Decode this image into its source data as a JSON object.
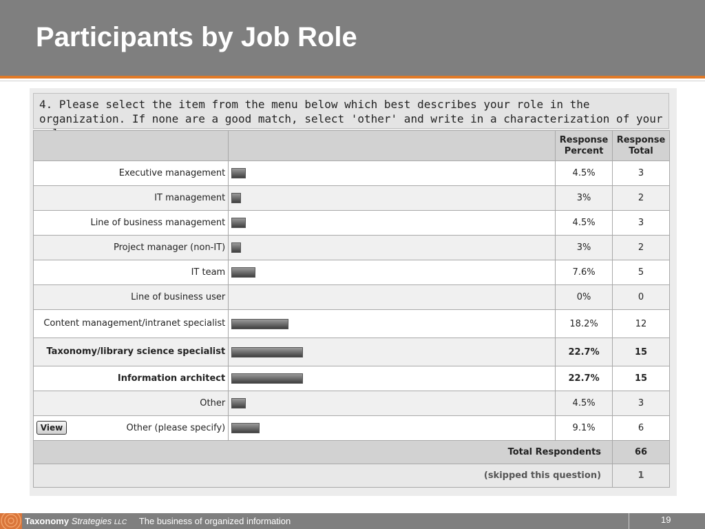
{
  "slide": {
    "title": "Participants by Job Role",
    "page_number": "19"
  },
  "footer": {
    "brand_bold": "Taxonomy",
    "brand_italic": "Strategies",
    "brand_suffix": "LLC",
    "tagline": "The business of organized information"
  },
  "survey": {
    "question": "4. Please select the item from the menu below which best describes your role in the organization. If none are a good match, select 'other' and write in a characterization of your role.",
    "header": {
      "response_percent": "Response Percent",
      "response_total": "Response Total"
    },
    "view_button": "View",
    "total_label": "Total Respondents",
    "total_value": "66",
    "skipped_label": "(skipped this question)",
    "skipped_value": "1"
  },
  "chart_data": {
    "type": "bar",
    "categories": [
      "Executive management",
      "IT management",
      "Line of business management",
      "Project manager (non-IT)",
      "IT team",
      "Line of business user",
      "Content management/intranet specialist",
      "Taxonomy/library science specialist",
      "Information architect",
      "Other",
      "Other (please specify)"
    ],
    "series": [
      {
        "name": "Response Percent",
        "values": [
          4.5,
          3,
          4.5,
          3,
          7.6,
          0,
          18.2,
          22.7,
          22.7,
          4.5,
          9.1
        ]
      },
      {
        "name": "Response Total",
        "values": [
          3,
          2,
          3,
          2,
          5,
          0,
          12,
          15,
          15,
          3,
          6
        ]
      }
    ],
    "percent_labels": [
      "4.5%",
      "3%",
      "4.5%",
      "3%",
      "7.6%",
      "0%",
      "18.2%",
      "22.7%",
      "22.7%",
      "4.5%",
      "9.1%"
    ],
    "bold_rows": [
      7,
      8
    ],
    "ylim": [
      0,
      100
    ]
  }
}
